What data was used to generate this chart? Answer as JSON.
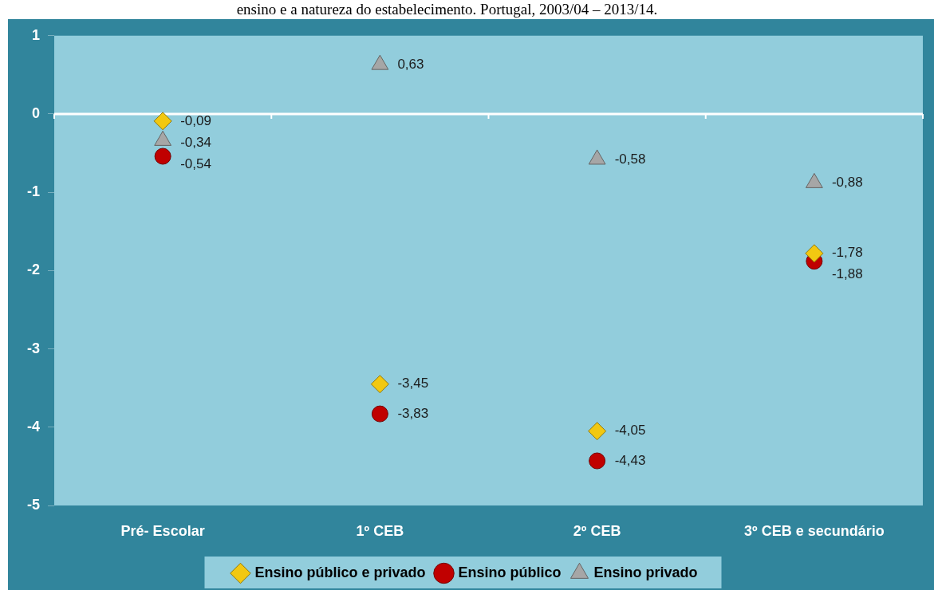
{
  "chart_data": {
    "type": "scatter",
    "title": "ensino e a natureza do estabelecimento. Portugal, 2003/04 – 2013/14.",
    "categories": [
      "Pré- Escolar",
      "1º CEB",
      "2º CEB",
      "3º CEB e secundário"
    ],
    "series": [
      {
        "name": "Ensino público e privado",
        "color": "#f2c811",
        "marker": "diamond",
        "values": [
          -0.09,
          -3.45,
          -4.05,
          -1.78
        ],
        "value_labels": [
          "-0,09",
          "-3,45",
          "-4,05",
          "-1,78"
        ]
      },
      {
        "name": "Ensino público",
        "color": "#c00000",
        "marker": "circle",
        "values": [
          -0.54,
          -3.83,
          -4.43,
          -1.88
        ],
        "value_labels": [
          "-0,54",
          "-3,83",
          "-4,43",
          "-1,88"
        ]
      },
      {
        "name": "Ensino privado",
        "color": "#a6a6a6",
        "marker": "triangle",
        "values": [
          -0.34,
          0.63,
          -0.58,
          -0.88
        ],
        "value_labels": [
          "-0,34",
          "0,63",
          "-0,58",
          "-0,88"
        ]
      }
    ],
    "ylim": [
      -5,
      1
    ],
    "yticks": [
      -5,
      -4,
      -3,
      -2,
      -1,
      0,
      1
    ],
    "grid": false,
    "legend": "bottom",
    "ref_lines": [
      {
        "axis": "y",
        "value": 0,
        "color": "#ffffff"
      }
    ]
  }
}
